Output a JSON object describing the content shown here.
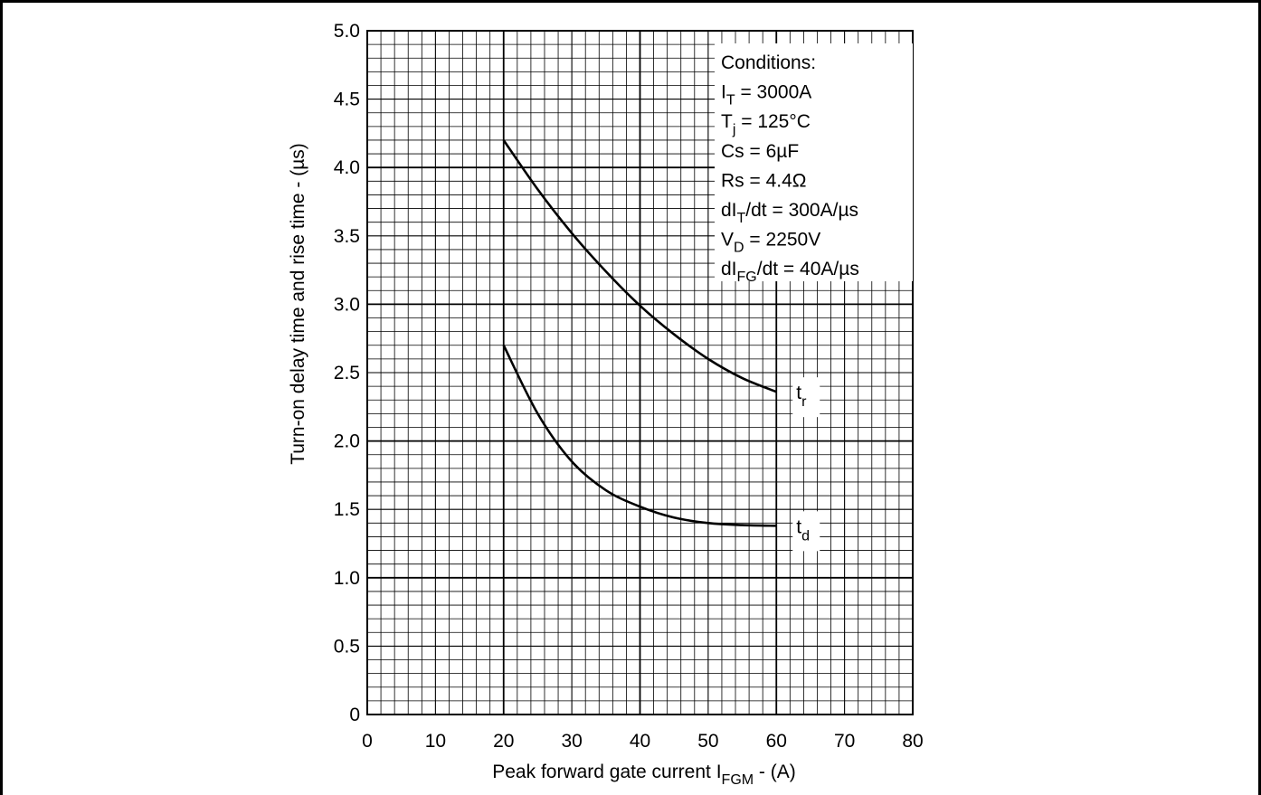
{
  "chart_data": {
    "type": "line",
    "xlabel": "Peak forward gate current  I",
    "xlabel_sub": "FGM",
    "xlabel_tail": " - (A)",
    "ylabel": "Turn-on delay time and rise time - (µs)",
    "xlim": [
      0,
      80
    ],
    "ylim": [
      0,
      5.0
    ],
    "x_ticks": [
      "0",
      "10",
      "20",
      "30",
      "40",
      "50",
      "60",
      "70",
      "80"
    ],
    "y_ticks": [
      "0",
      "0.5",
      "1.0",
      "1.5",
      "2.0",
      "2.5",
      "3.0",
      "3.5",
      "4.0",
      "4.5",
      "5.0"
    ],
    "grid": true,
    "series": [
      {
        "name": "tr",
        "label_main": "t",
        "label_sub": "r",
        "x": [
          20,
          25,
          30,
          35,
          40,
          45,
          50,
          55,
          60
        ],
        "y": [
          4.2,
          3.84,
          3.52,
          3.24,
          2.99,
          2.78,
          2.6,
          2.46,
          2.36
        ]
      },
      {
        "name": "td",
        "label_main": "t",
        "label_sub": "d",
        "x": [
          20,
          25,
          30,
          35,
          40,
          45,
          50,
          55,
          60
        ],
        "y": [
          2.7,
          2.2,
          1.85,
          1.64,
          1.52,
          1.44,
          1.4,
          1.385,
          1.38
        ]
      }
    ],
    "conditions": [
      {
        "main": "Conditions:",
        "sub": "",
        "tail": ""
      },
      {
        "main": "I",
        "sub": "T",
        "tail": " = 3000A"
      },
      {
        "main": "T",
        "sub": "j",
        "tail": " = 125°C"
      },
      {
        "main": "Cs = 6µF",
        "sub": "",
        "tail": ""
      },
      {
        "main": "Rs = 4.4Ω",
        "sub": "",
        "tail": ""
      },
      {
        "main": "dI",
        "sub": "T",
        "tail": "/dt = 300A/µs"
      },
      {
        "main": "V",
        "sub": "D",
        "tail": " = 2250V"
      },
      {
        "main": "dI",
        "sub": "FG",
        "tail": "/dt = 40A/µs"
      }
    ]
  }
}
